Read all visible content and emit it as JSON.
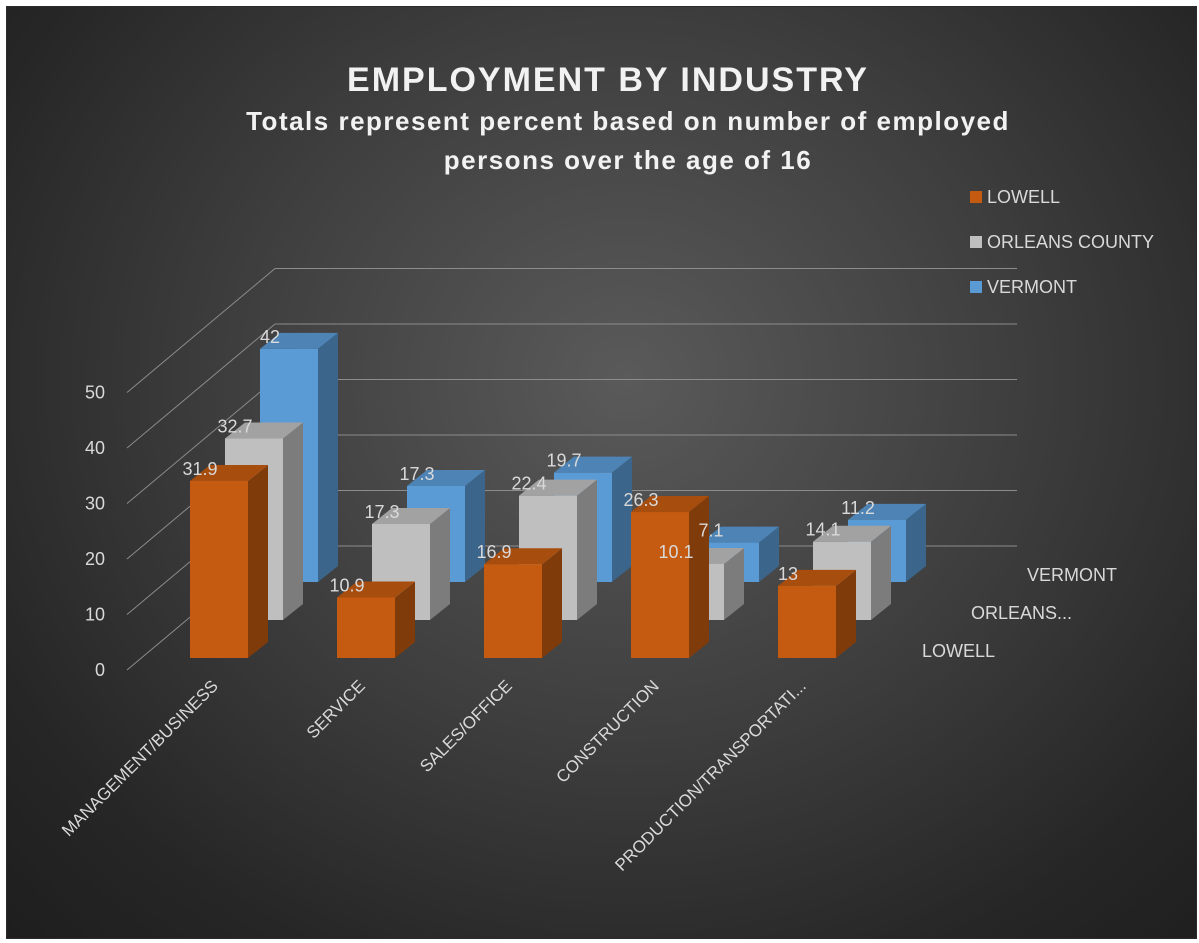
{
  "chart_data": {
    "type": "bar",
    "title": "EMPLOYMENT BY INDUSTRY",
    "subtitle_lines": [
      "Totals represent percent based on number of employed",
      "persons over the age of 16"
    ],
    "categories": [
      "MANAGEMENT/BUSINESS",
      "SERVICE",
      "SALES/OFFICE",
      "CONSTRUCTION",
      "PRODUCTION/TRANSPORTATI..."
    ],
    "series": [
      {
        "name": "LOWELL",
        "depth_label": "LOWELL",
        "color": "#c55a11",
        "values": [
          31.9,
          10.9,
          16.9,
          26.3,
          13
        ]
      },
      {
        "name": "ORLEANS COUNTY",
        "depth_label": "ORLEANS...",
        "color": "#bfbfbf",
        "values": [
          32.7,
          17.3,
          22.4,
          10.1,
          14.1
        ]
      },
      {
        "name": "VERMONT",
        "depth_label": "VERMONT",
        "color": "#5b9bd5",
        "values": [
          42,
          17.3,
          19.7,
          7.1,
          11.2
        ]
      }
    ],
    "ylim": [
      0,
      50
    ],
    "yticks": [
      "0",
      "10",
      "20",
      "30",
      "40",
      "50"
    ],
    "xlabel": "",
    "ylabel": "",
    "grid": true,
    "legend_position": "top-right",
    "three_d": true
  }
}
